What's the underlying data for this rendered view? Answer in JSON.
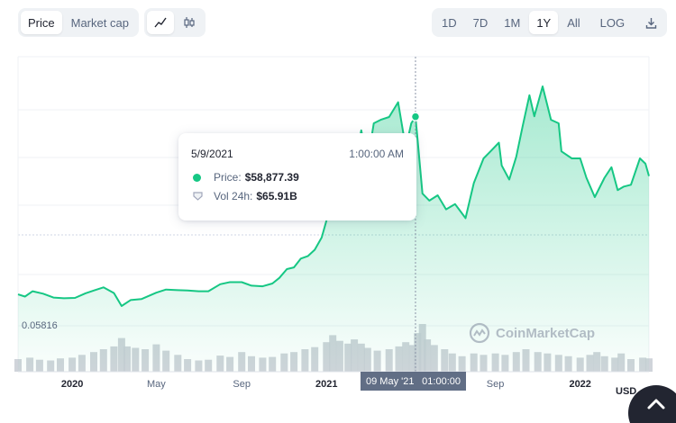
{
  "toolbar": {
    "type_buttons": [
      {
        "label": "Price",
        "active": true
      },
      {
        "label": "Market cap",
        "active": false
      }
    ],
    "view_buttons": [
      {
        "icon": "line-chart-icon",
        "active": true
      },
      {
        "icon": "candlestick-icon",
        "active": false
      }
    ],
    "range_buttons": [
      {
        "label": "1D",
        "active": false
      },
      {
        "label": "7D",
        "active": false
      },
      {
        "label": "1M",
        "active": false
      },
      {
        "label": "1Y",
        "active": true
      },
      {
        "label": "All",
        "active": false
      },
      {
        "label": "LOG",
        "active": false
      }
    ],
    "download_icon": "download-icon"
  },
  "tooltip": {
    "date": "5/9/2021",
    "time": "1:00:00 AM",
    "price_label": "Price:",
    "price_value": "$58,877.39",
    "volume_label": "Vol 24h:",
    "volume_value": "$65.91B"
  },
  "axis": {
    "min_label": "0.05816",
    "currency": "USD",
    "cursor_date": "09 May '21",
    "cursor_time": "01:00:00"
  },
  "watermark": "CoinMarketCap",
  "colors": {
    "line": "#16c784",
    "volume": "#c8ccd4",
    "accent_dark": "#222531"
  },
  "chart_data": {
    "type": "area",
    "x_ticks": [
      {
        "label": "2020",
        "bold": true
      },
      {
        "label": "May",
        "bold": false
      },
      {
        "label": "Sep",
        "bold": false
      },
      {
        "label": "2021",
        "bold": true
      },
      {
        "label": "Sep",
        "bold": false
      },
      {
        "label": "2022",
        "bold": true
      }
    ],
    "price": [
      {
        "x": "2019-10-15",
        "y": 8300
      },
      {
        "x": "2019-10-25",
        "y": 7700
      },
      {
        "x": "2019-11-05",
        "y": 9200
      },
      {
        "x": "2019-11-20",
        "y": 8500
      },
      {
        "x": "2019-12-05",
        "y": 7400
      },
      {
        "x": "2019-12-20",
        "y": 7200
      },
      {
        "x": "2020-01-05",
        "y": 7300
      },
      {
        "x": "2020-01-20",
        "y": 8600
      },
      {
        "x": "2020-02-01",
        "y": 9400
      },
      {
        "x": "2020-02-15",
        "y": 10300
      },
      {
        "x": "2020-03-01",
        "y": 8700
      },
      {
        "x": "2020-03-12",
        "y": 5000
      },
      {
        "x": "2020-03-25",
        "y": 6700
      },
      {
        "x": "2020-04-10",
        "y": 7000
      },
      {
        "x": "2020-05-01",
        "y": 8800
      },
      {
        "x": "2020-05-15",
        "y": 9700
      },
      {
        "x": "2020-06-01",
        "y": 9500
      },
      {
        "x": "2020-06-15",
        "y": 9400
      },
      {
        "x": "2020-07-01",
        "y": 9200
      },
      {
        "x": "2020-07-15",
        "y": 9200
      },
      {
        "x": "2020-08-01",
        "y": 11200
      },
      {
        "x": "2020-08-15",
        "y": 11800
      },
      {
        "x": "2020-09-01",
        "y": 11800
      },
      {
        "x": "2020-09-15",
        "y": 10800
      },
      {
        "x": "2020-10-01",
        "y": 10600
      },
      {
        "x": "2020-10-15",
        "y": 11400
      },
      {
        "x": "2020-10-25",
        "y": 13000
      },
      {
        "x": "2020-11-05",
        "y": 15500
      },
      {
        "x": "2020-11-15",
        "y": 16000
      },
      {
        "x": "2020-11-25",
        "y": 18500
      },
      {
        "x": "2020-12-05",
        "y": 19200
      },
      {
        "x": "2020-12-15",
        "y": 21000
      },
      {
        "x": "2020-12-25",
        "y": 24500
      },
      {
        "x": "2021-01-01",
        "y": 29400
      },
      {
        "x": "2021-01-08",
        "y": 40500
      },
      {
        "x": "2021-01-15",
        "y": 37000
      },
      {
        "x": "2021-01-25",
        "y": 32000
      },
      {
        "x": "2021-02-05",
        "y": 37500
      },
      {
        "x": "2021-02-12",
        "y": 47000
      },
      {
        "x": "2021-02-20",
        "y": 55000
      },
      {
        "x": "2021-03-01",
        "y": 46000
      },
      {
        "x": "2021-03-10",
        "y": 57000
      },
      {
        "x": "2021-03-20",
        "y": 58000
      },
      {
        "x": "2021-04-01",
        "y": 58800
      },
      {
        "x": "2021-04-14",
        "y": 63000
      },
      {
        "x": "2021-04-25",
        "y": 50000
      },
      {
        "x": "2021-05-03",
        "y": 57000
      },
      {
        "x": "2021-05-09",
        "y": 58877.39
      },
      {
        "x": "2021-05-19",
        "y": 37000
      },
      {
        "x": "2021-05-29",
        "y": 35000
      },
      {
        "x": "2021-06-10",
        "y": 36500
      },
      {
        "x": "2021-06-22",
        "y": 32500
      },
      {
        "x": "2021-07-05",
        "y": 34000
      },
      {
        "x": "2021-07-20",
        "y": 30000
      },
      {
        "x": "2021-08-01",
        "y": 40000
      },
      {
        "x": "2021-08-15",
        "y": 47000
      },
      {
        "x": "2021-08-25",
        "y": 49000
      },
      {
        "x": "2021-09-06",
        "y": 51500
      },
      {
        "x": "2021-09-10",
        "y": 45000
      },
      {
        "x": "2021-09-21",
        "y": 41000
      },
      {
        "x": "2021-10-01",
        "y": 47500
      },
      {
        "x": "2021-10-10",
        "y": 56000
      },
      {
        "x": "2021-10-20",
        "y": 65000
      },
      {
        "x": "2021-10-27",
        "y": 59000
      },
      {
        "x": "2021-11-08",
        "y": 67500
      },
      {
        "x": "2021-11-20",
        "y": 58000
      },
      {
        "x": "2021-12-01",
        "y": 57000
      },
      {
        "x": "2021-12-05",
        "y": 49000
      },
      {
        "x": "2021-12-20",
        "y": 47000
      },
      {
        "x": "2022-01-01",
        "y": 47000
      },
      {
        "x": "2022-01-10",
        "y": 41500
      },
      {
        "x": "2022-01-22",
        "y": 36000
      },
      {
        "x": "2022-02-05",
        "y": 41500
      },
      {
        "x": "2022-02-15",
        "y": 44500
      },
      {
        "x": "2022-02-24",
        "y": 38000
      },
      {
        "x": "2022-03-05",
        "y": 39000
      },
      {
        "x": "2022-03-15",
        "y": 39500
      },
      {
        "x": "2022-03-28",
        "y": 47000
      },
      {
        "x": "2022-04-05",
        "y": 45500
      },
      {
        "x": "2022-04-10",
        "y": 42000
      }
    ],
    "volume": [
      {
        "x": "2019-10-15",
        "y": 18
      },
      {
        "x": "2019-11-01",
        "y": 20
      },
      {
        "x": "2019-11-15",
        "y": 17
      },
      {
        "x": "2019-12-01",
        "y": 16
      },
      {
        "x": "2019-12-15",
        "y": 19
      },
      {
        "x": "2020-01-01",
        "y": 20
      },
      {
        "x": "2020-01-15",
        "y": 24
      },
      {
        "x": "2020-02-01",
        "y": 28
      },
      {
        "x": "2020-02-15",
        "y": 32
      },
      {
        "x": "2020-03-01",
        "y": 36
      },
      {
        "x": "2020-03-12",
        "y": 48
      },
      {
        "x": "2020-03-20",
        "y": 36
      },
      {
        "x": "2020-04-01",
        "y": 34
      },
      {
        "x": "2020-04-15",
        "y": 32
      },
      {
        "x": "2020-05-01",
        "y": 39
      },
      {
        "x": "2020-05-15",
        "y": 30
      },
      {
        "x": "2020-06-01",
        "y": 24
      },
      {
        "x": "2020-06-15",
        "y": 18
      },
      {
        "x": "2020-07-01",
        "y": 16
      },
      {
        "x": "2020-07-15",
        "y": 17
      },
      {
        "x": "2020-08-01",
        "y": 23
      },
      {
        "x": "2020-08-15",
        "y": 21
      },
      {
        "x": "2020-09-01",
        "y": 28
      },
      {
        "x": "2020-09-15",
        "y": 22
      },
      {
        "x": "2020-10-01",
        "y": 20
      },
      {
        "x": "2020-10-15",
        "y": 21
      },
      {
        "x": "2020-11-01",
        "y": 26
      },
      {
        "x": "2020-11-15",
        "y": 28
      },
      {
        "x": "2020-12-01",
        "y": 32
      },
      {
        "x": "2020-12-15",
        "y": 35
      },
      {
        "x": "2021-01-01",
        "y": 42
      },
      {
        "x": "2021-01-10",
        "y": 52
      },
      {
        "x": "2021-01-20",
        "y": 44
      },
      {
        "x": "2021-02-01",
        "y": 40
      },
      {
        "x": "2021-02-10",
        "y": 46
      },
      {
        "x": "2021-02-20",
        "y": 40
      },
      {
        "x": "2021-03-01",
        "y": 34
      },
      {
        "x": "2021-03-15",
        "y": 30
      },
      {
        "x": "2021-04-01",
        "y": 32
      },
      {
        "x": "2021-04-15",
        "y": 36
      },
      {
        "x": "2021-04-25",
        "y": 42
      },
      {
        "x": "2021-05-05",
        "y": 38
      },
      {
        "x": "2021-05-12",
        "y": 55
      },
      {
        "x": "2021-05-19",
        "y": 68
      },
      {
        "x": "2021-05-26",
        "y": 46
      },
      {
        "x": "2021-06-05",
        "y": 38
      },
      {
        "x": "2021-06-20",
        "y": 32
      },
      {
        "x": "2021-07-01",
        "y": 26
      },
      {
        "x": "2021-07-15",
        "y": 22
      },
      {
        "x": "2021-08-01",
        "y": 26
      },
      {
        "x": "2021-08-15",
        "y": 24
      },
      {
        "x": "2021-09-01",
        "y": 26
      },
      {
        "x": "2021-09-15",
        "y": 24
      },
      {
        "x": "2021-10-01",
        "y": 28
      },
      {
        "x": "2021-10-15",
        "y": 32
      },
      {
        "x": "2021-11-01",
        "y": 28
      },
      {
        "x": "2021-11-15",
        "y": 26
      },
      {
        "x": "2021-12-01",
        "y": 24
      },
      {
        "x": "2021-12-15",
        "y": 22
      },
      {
        "x": "2022-01-01",
        "y": 20
      },
      {
        "x": "2022-01-15",
        "y": 24
      },
      {
        "x": "2022-01-25",
        "y": 28
      },
      {
        "x": "2022-02-05",
        "y": 22
      },
      {
        "x": "2022-02-20",
        "y": 20
      },
      {
        "x": "2022-03-01",
        "y": 26
      },
      {
        "x": "2022-03-15",
        "y": 18
      },
      {
        "x": "2022-04-01",
        "y": 20
      },
      {
        "x": "2022-04-10",
        "y": 19
      }
    ],
    "highlight": {
      "x": "2021-05-09",
      "y": 58877.39
    },
    "y_min_label": 0.05816,
    "grid": true
  }
}
